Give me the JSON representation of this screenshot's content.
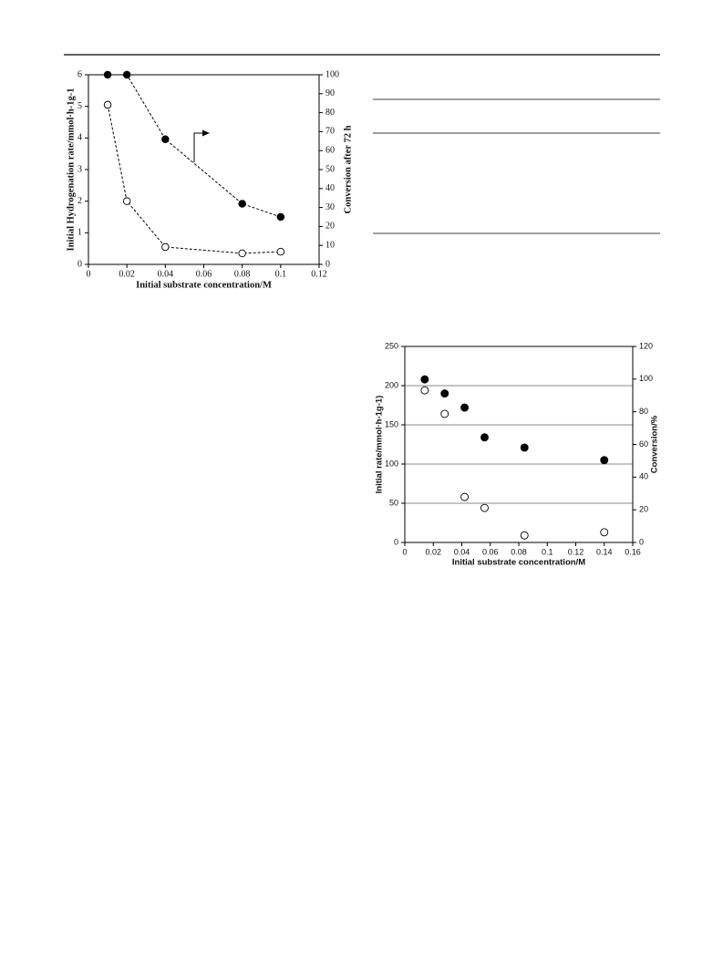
{
  "chart_data": [
    {
      "type": "scatter",
      "line_style": "dashed",
      "xlabel": "Initial substrate concentration/M",
      "ylabel": "Initial Hydrogenation rate/mmol·h-1g-1",
      "y2label": "Conversion after 72 h",
      "xlim": [
        0,
        0.12
      ],
      "xticks": [
        0,
        0.02,
        0.04,
        0.06,
        0.08,
        0.1,
        0.12
      ],
      "ylim": [
        0,
        6
      ],
      "yticks": [
        0,
        1,
        2,
        3,
        4,
        5,
        6
      ],
      "y2lim": [
        0,
        100
      ],
      "y2ticks": [
        0,
        10,
        20,
        30,
        40,
        50,
        60,
        70,
        80,
        90,
        100
      ],
      "grid": false,
      "series": [
        {
          "color": "#ffffff",
          "x": [
            0.01,
            0.02,
            0.04,
            0.08,
            0.1
          ],
          "values": [
            5.05,
            2.0,
            0.55,
            0.35,
            0.4
          ]
        },
        {
          "color": "#000000",
          "axis": "y2",
          "x": [
            0.01,
            0.02,
            0.04,
            0.08,
            0.1
          ],
          "values": [
            100,
            100,
            66,
            32,
            25
          ]
        }
      ]
    },
    {
      "type": "scatter",
      "line_style": "none",
      "xlabel": "Initial substrate concentration/M",
      "ylabel": "Initial rate/mmol·h-1g-1)",
      "y2label": "Conversion/%",
      "xlim": [
        0,
        0.16
      ],
      "xticks": [
        0,
        0.02,
        0.04,
        0.06,
        0.08,
        0.1,
        0.12,
        0.14,
        0.16
      ],
      "ylim": [
        0,
        250
      ],
      "yticks": [
        0,
        50,
        100,
        150,
        200,
        250
      ],
      "y2lim": [
        0,
        120
      ],
      "y2ticks": [
        0,
        20,
        40,
        60,
        80,
        100,
        120
      ],
      "grid": true,
      "series": [
        {
          "color": "#000000",
          "x": [
            0.014,
            0.028,
            0.042,
            0.056,
            0.084,
            0.14
          ],
          "values": [
            208,
            190,
            172,
            134,
            121,
            105
          ]
        },
        {
          "color": "#ffffff",
          "x": [
            0.014,
            0.028,
            0.042,
            0.056,
            0.084,
            0.14
          ],
          "values": [
            194,
            164,
            58,
            44,
            9,
            13
          ]
        }
      ]
    }
  ]
}
